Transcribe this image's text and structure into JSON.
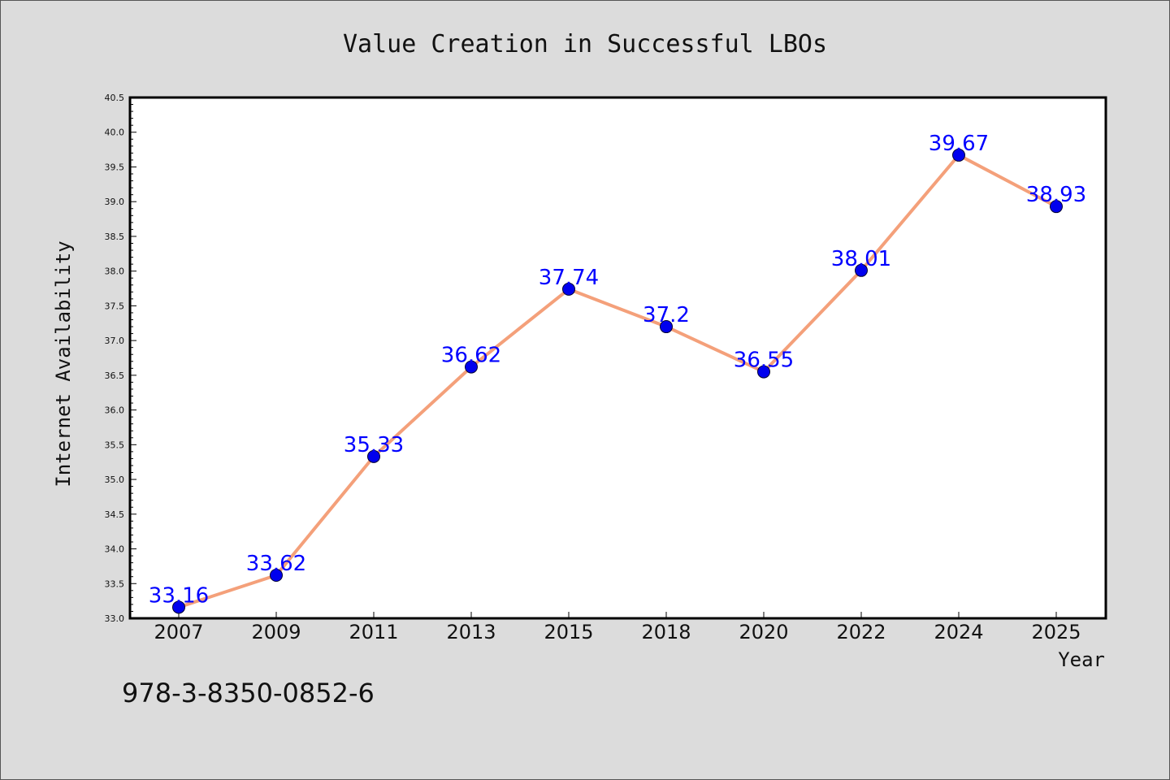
{
  "note": "978-3-8350-0852-6",
  "chart_data": {
    "type": "line",
    "title": "Value Creation in Successful LBOs",
    "xlabel": "Year",
    "ylabel": "Internet Availability",
    "categories": [
      "2007",
      "2009",
      "2011",
      "2013",
      "2015",
      "2018",
      "2020",
      "2022",
      "2024",
      "2025"
    ],
    "values": [
      33.16,
      33.62,
      35.33,
      36.62,
      37.74,
      37.2,
      36.55,
      38.01,
      39.67,
      38.93
    ],
    "data_labels": [
      "33.16",
      "33.62",
      "35.33",
      "36.62",
      "37.74",
      "37.2",
      "36.55",
      "38.01",
      "39.67",
      "38.93"
    ],
    "ylim": [
      33.0,
      40.5
    ],
    "yticks": [
      "33.0",
      "33.5",
      "34.0",
      "34.5",
      "35.0",
      "35.5",
      "36.0",
      "36.5",
      "37.0",
      "37.5",
      "38.0",
      "38.5",
      "39.0",
      "39.5",
      "40.0",
      "40.5"
    ],
    "grid": false,
    "line_color": "#f4a07a",
    "marker_color": "#0000ee",
    "label_color": "#0000ff",
    "background": "#dcdcdc"
  }
}
